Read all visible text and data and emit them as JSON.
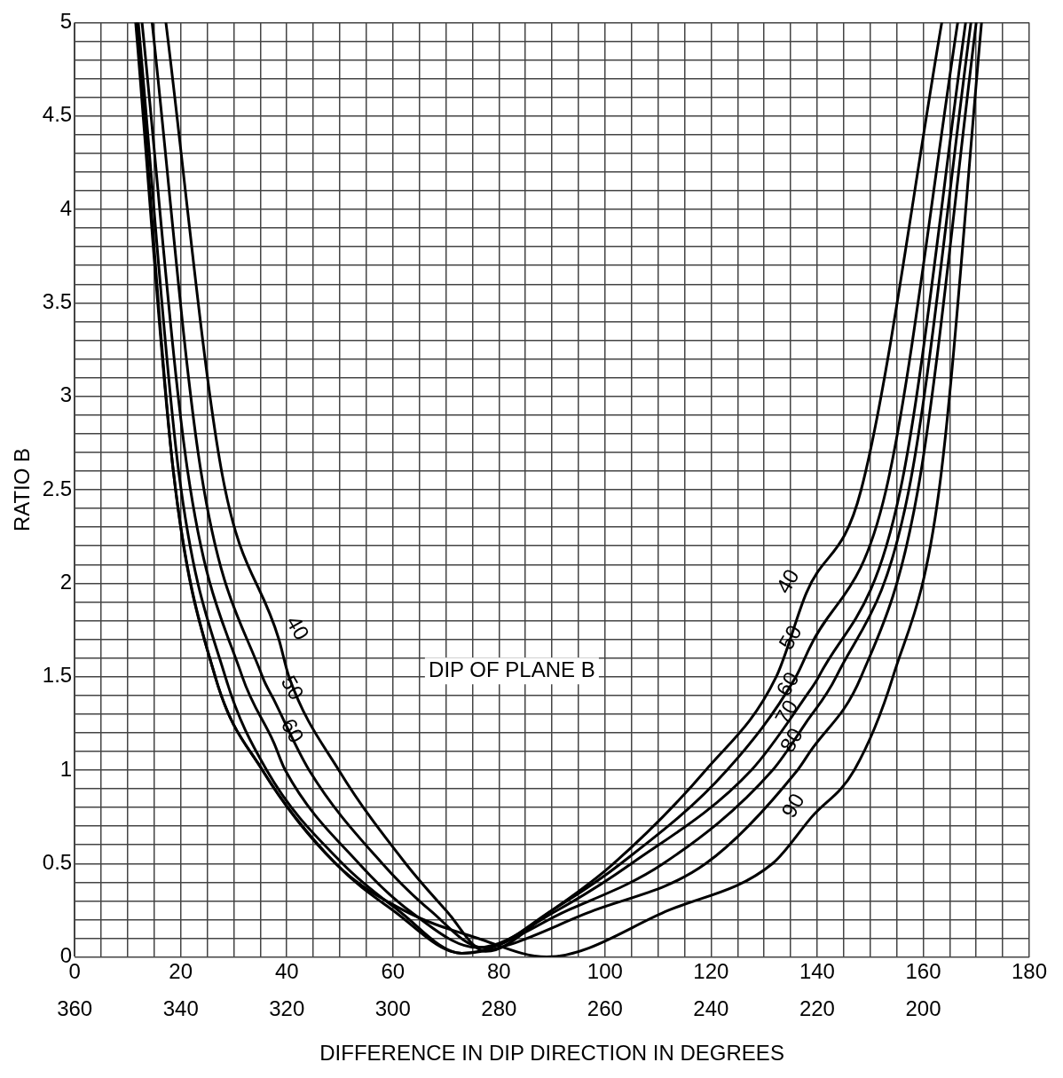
{
  "chart_data": {
    "type": "line",
    "xlabel": "DIFFERENCE IN DIP DIRECTION IN DEGREES",
    "ylabel": "RATIO B",
    "annotations": [
      "DIP OF PLANE B",
      {
        "text": "40",
        "x": 38.5,
        "y": 1.7
      },
      {
        "text": "50",
        "x": 37.5,
        "y": 1.38
      },
      {
        "text": "60",
        "x": 37.5,
        "y": 1.15
      },
      {
        "text": "40",
        "x": 138,
        "y": 1.95
      },
      {
        "text": "50",
        "x": 138.5,
        "y": 1.65
      },
      {
        "text": "60",
        "x": 138,
        "y": 1.4
      },
      {
        "text": "70",
        "x": 137.8,
        "y": 1.25
      },
      {
        "text": "80",
        "x": 138.7,
        "y": 1.1
      },
      {
        "text": "90",
        "x": 139,
        "y": 0.75
      }
    ],
    "series": [
      {
        "color": "#000000",
        "x": [
          17.2,
          27.7,
          38.5,
          40.4,
          49.8,
          62.4,
          70,
          77.5,
          90,
          101.6,
          119,
          132.3,
          138,
          148.3,
          163.5
        ],
        "values": [
          5,
          2.6,
          1.7,
          1.5,
          1,
          0.5,
          0.25,
          0.03,
          0.25,
          0.5,
          1,
          1.5,
          1.95,
          2.5,
          5
        ]
      },
      {
        "color": "#000000",
        "x": [
          14.6,
          23.8,
          35.4,
          37.5,
          44.2,
          58,
          67,
          77,
          90,
          103,
          123,
          136,
          138.5,
          153,
          166.5
        ],
        "values": [
          5,
          2.6,
          1.5,
          1.38,
          1,
          0.5,
          0.25,
          0.05,
          0.25,
          0.5,
          1,
          1.5,
          1.65,
          2.5,
          5
        ]
      },
      {
        "color": "#000000",
        "x": [
          12.7,
          21.3,
          31.6,
          37.5,
          39.7,
          53.6,
          63,
          76,
          91,
          105,
          127.6,
          138,
          140.3,
          155.7,
          168
        ],
        "values": [
          5,
          2.6,
          1.5,
          1.15,
          1,
          0.5,
          0.25,
          0.05,
          0.25,
          0.5,
          1,
          1.4,
          1.5,
          2.5,
          5
        ]
      },
      {
        "color": "#000000",
        "x": [
          12,
          19.6,
          28.4,
          36.2,
          50.5,
          61,
          73,
          93,
          111,
          131.6,
          137.8,
          143.6,
          157.3,
          169
        ],
        "values": [
          5,
          2.6,
          1.5,
          1,
          0.5,
          0.25,
          0.02,
          0.25,
          0.5,
          1,
          1.25,
          1.5,
          2.5,
          5
        ]
      },
      {
        "color": "#000000",
        "x": [
          11.8,
          18.6,
          26.5,
          35.4,
          49.2,
          60,
          73,
          98,
          119,
          136.3,
          138.7,
          148.3,
          159,
          170
        ],
        "values": [
          5,
          2.6,
          1.5,
          1,
          0.5,
          0.25,
          0.02,
          0.25,
          0.5,
          1,
          1.1,
          1.5,
          2.5,
          5
        ]
      },
      {
        "color": "#000000",
        "x": [
          11.5,
          18.6,
          26.5,
          35.4,
          49.2,
          62,
          76,
          89,
          112,
          131.6,
          139,
          147,
          154.3,
          163,
          171
        ],
        "values": [
          5,
          2.6,
          1.5,
          1,
          0.5,
          0.25,
          0.1,
          0,
          0.25,
          0.5,
          0.75,
          1,
          1.5,
          2.5,
          5
        ]
      }
    ],
    "xlim": [
      0,
      180
    ],
    "xticks": [
      0,
      {
        "value": 5,
        "label": null
      },
      {
        "value": 10,
        "label": null
      },
      {
        "value": 15,
        "label": null
      },
      20,
      {
        "value": 25,
        "label": null
      },
      {
        "value": 30,
        "label": null
      },
      {
        "value": 35,
        "label": null
      },
      40,
      {
        "value": 45,
        "label": null
      },
      {
        "value": 50,
        "label": null
      },
      {
        "value": 55,
        "label": null
      },
      60,
      {
        "value": 65,
        "label": null
      },
      {
        "value": 70,
        "label": null
      },
      {
        "value": 75,
        "label": null
      },
      80,
      {
        "value": 85,
        "label": null
      },
      {
        "value": 90,
        "label": null
      },
      {
        "value": 95,
        "label": null
      },
      100,
      {
        "value": 105,
        "label": null
      },
      {
        "value": 110,
        "label": null
      },
      {
        "value": 115,
        "label": null
      },
      120,
      {
        "value": 125,
        "label": null
      },
      {
        "value": 130,
        "label": null
      },
      {
        "value": 135,
        "label": null
      },
      140,
      {
        "value": 145,
        "label": null
      },
      {
        "value": 150,
        "label": null
      },
      {
        "value": 155,
        "label": null
      },
      160,
      {
        "value": 165,
        "label": null
      },
      {
        "value": 170,
        "label": null
      },
      {
        "value": 175,
        "label": null
      },
      180
    ],
    "x2lim": [
      360,
      180
    ],
    "x2ticks": [
      360,
      340,
      320,
      300,
      280,
      260,
      240,
      220,
      200
    ],
    "ylim": [
      0,
      5
    ],
    "yticks": [
      0,
      {
        "value": 0.1,
        "label": null
      },
      {
        "value": 0.2,
        "label": null
      },
      {
        "value": 0.3,
        "label": null
      },
      {
        "value": 0.4,
        "label": null
      },
      0.5,
      {
        "value": 0.6,
        "label": null
      },
      {
        "value": 0.7,
        "label": null
      },
      {
        "value": 0.8,
        "label": null
      },
      {
        "value": 0.9,
        "label": null
      },
      1,
      {
        "value": 1.1,
        "label": null
      },
      {
        "value": 1.2,
        "label": null
      },
      {
        "value": 1.3,
        "label": null
      },
      {
        "value": 1.4,
        "label": null
      },
      1.5,
      {
        "value": 1.6,
        "label": null
      },
      {
        "value": 1.7,
        "label": null
      },
      {
        "value": 1.8,
        "label": null
      },
      {
        "value": 1.9,
        "label": null
      },
      2,
      {
        "value": 2.1,
        "label": null
      },
      {
        "value": 2.2,
        "label": null
      },
      {
        "value": 2.3,
        "label": null
      },
      {
        "value": 2.4,
        "label": null
      },
      2.5,
      {
        "value": 2.6,
        "label": null
      },
      {
        "value": 2.7,
        "label": null
      },
      {
        "value": 2.8,
        "label": null
      },
      {
        "value": 2.9,
        "label": null
      },
      3,
      {
        "value": 3.1,
        "label": null
      },
      {
        "value": 3.2,
        "label": null
      },
      {
        "value": 3.3,
        "label": null
      },
      {
        "value": 3.4,
        "label": null
      },
      3.5,
      {
        "value": 3.6,
        "label": null
      },
      {
        "value": 3.7,
        "label": null
      },
      {
        "value": 3.8,
        "label": null
      },
      {
        "value": 3.9,
        "label": null
      },
      4,
      {
        "value": 4.1,
        "label": null
      },
      {
        "value": 4.2,
        "label": null
      },
      {
        "value": 4.3,
        "label": null
      },
      {
        "value": 4.4,
        "label": null
      },
      4.5,
      {
        "value": 4.6,
        "label": null
      },
      {
        "value": 4.7,
        "label": null
      },
      {
        "value": 4.8,
        "label": null
      },
      {
        "value": 4.9,
        "label": null
      },
      5
    ],
    "grid": true,
    "legend": false,
    "marker": "none",
    "line_style": "solid"
  }
}
